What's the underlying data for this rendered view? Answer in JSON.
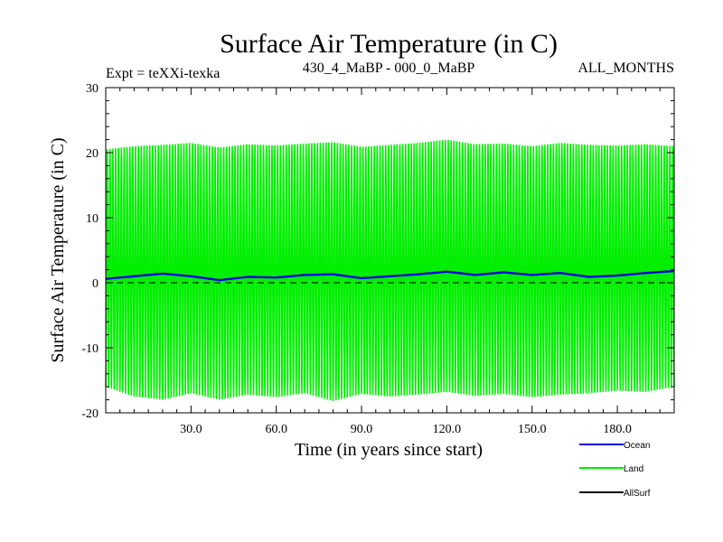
{
  "chart_data": {
    "type": "line",
    "title": "Surface Air Temperature (in C)",
    "subtitle_left": "Expt = teXXi-texka",
    "subtitle_center": "430_4_MaBP - 000_0_MaBP",
    "subtitle_right": "ALL_MONTHS",
    "xlabel": "Time (in years since start)",
    "ylabel": "Surface Air Temperature (in C)",
    "xlim": [
      0,
      200
    ],
    "ylim": [
      -20,
      30
    ],
    "x_ticks": [
      30,
      60,
      90,
      120,
      150,
      180
    ],
    "x_tick_labels": [
      "30.0",
      "60.0",
      "90.0",
      "120.0",
      "150.0",
      "180.0"
    ],
    "y_ticks": [
      -20,
      -10,
      0,
      10,
      20,
      30
    ],
    "y_tick_labels": [
      "-20",
      "-10",
      "0",
      "10",
      "20",
      "30"
    ],
    "zero_line": "dashed",
    "series": [
      {
        "name": "Land",
        "color": "#00ee00",
        "sampling": "annual seasonal cycle (summer max, winter min)",
        "x": [
          0,
          10,
          20,
          30,
          40,
          50,
          60,
          70,
          80,
          90,
          100,
          110,
          120,
          130,
          140,
          150,
          160,
          170,
          180,
          190,
          200
        ],
        "annual_max": [
          20.5,
          21.0,
          21.2,
          21.5,
          20.8,
          21.3,
          21.1,
          21.4,
          21.6,
          20.9,
          21.2,
          21.5,
          22.0,
          21.3,
          21.4,
          21.0,
          21.5,
          21.2,
          21.1,
          21.3,
          21.0
        ],
        "annual_min": [
          -16.0,
          -17.5,
          -18.0,
          -17.0,
          -18.0,
          -17.2,
          -17.6,
          -17.0,
          -18.2,
          -17.1,
          -17.5,
          -17.2,
          -16.8,
          -17.4,
          -17.1,
          -17.6,
          -17.2,
          -17.0,
          -16.6,
          -16.8,
          -16.0
        ]
      },
      {
        "name": "Ocean",
        "color": "#0000dd",
        "x": [
          0,
          10,
          20,
          30,
          40,
          50,
          60,
          70,
          80,
          90,
          100,
          110,
          120,
          130,
          140,
          150,
          160,
          170,
          180,
          190,
          200
        ],
        "values": [
          0.6,
          1.0,
          1.4,
          1.0,
          0.4,
          0.9,
          0.8,
          1.2,
          1.3,
          0.7,
          1.0,
          1.3,
          1.7,
          1.2,
          1.6,
          1.2,
          1.5,
          0.9,
          1.1,
          1.5,
          1.8
        ]
      },
      {
        "name": "AllSurf",
        "color": "#000000",
        "x": [],
        "values": []
      }
    ],
    "legend": [
      "Ocean",
      "Land",
      "AllSurf"
    ],
    "legend_position": "bottom-right"
  }
}
